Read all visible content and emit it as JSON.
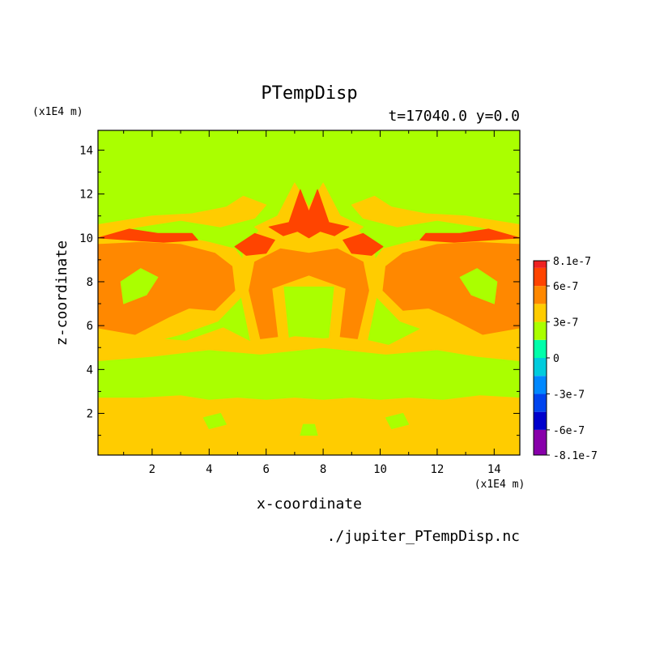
{
  "chart_data": {
    "type": "heatmap",
    "title": "PTempDisp",
    "subtitle": "t=17040.0 y=0.0",
    "xlabel": "x-coordinate",
    "ylabel": "z-coordinate",
    "x_unit": "(x1E4 m)",
    "y_unit": "(x1E4 m)",
    "source_file": "./jupiter_PTempDisp.nc",
    "xlim": [
      0.1,
      14.9
    ],
    "ylim": [
      0.1,
      14.9
    ],
    "x_ticks": [
      {
        "value": 2,
        "label": "2"
      },
      {
        "value": 4,
        "label": "4"
      },
      {
        "value": 6,
        "label": "6"
      },
      {
        "value": 8,
        "label": "8"
      },
      {
        "value": 10,
        "label": "10"
      },
      {
        "value": 12,
        "label": "12"
      },
      {
        "value": 14,
        "label": "14"
      }
    ],
    "y_ticks": [
      {
        "value": 2,
        "label": "2"
      },
      {
        "value": 4,
        "label": "4"
      },
      {
        "value": 6,
        "label": "6"
      },
      {
        "value": 8,
        "label": "8"
      },
      {
        "value": 10,
        "label": "10"
      },
      {
        "value": 12,
        "label": "12"
      },
      {
        "value": 14,
        "label": "14"
      }
    ],
    "colorbar": {
      "levels": [
        -8.1e-07,
        -6e-07,
        -4.5e-07,
        -3e-07,
        -1.5e-07,
        0,
        1.5e-07,
        3e-07,
        4.5e-07,
        6e-07,
        7.5e-07,
        8.1e-07
      ],
      "colors": [
        "#8800aa",
        "#0000cc",
        "#0044ee",
        "#0088ff",
        "#00ccdd",
        "#00ffaa",
        "#aaff00",
        "#ffcc00",
        "#ff8800",
        "#ff4400",
        "#ee2222",
        "#ffaaaa"
      ],
      "tick_labels": [
        {
          "value": 8.1e-07,
          "label": "8.1e-7"
        },
        {
          "value": 6e-07,
          "label": "6e-7"
        },
        {
          "value": 3e-07,
          "label": "3e-7"
        },
        {
          "value": 0,
          "label": "0"
        },
        {
          "value": -3e-07,
          "label": "-3e-7"
        },
        {
          "value": -6e-07,
          "label": "-6e-7"
        },
        {
          "value": -8.1e-07,
          "label": "-8.1e-7"
        }
      ]
    },
    "background_color": "#aaff00",
    "regions": [
      {
        "name": "lower-band",
        "color": "#ffcc00",
        "points": [
          [
            0.1,
            0.1
          ],
          [
            14.9,
            0.1
          ],
          [
            14.9,
            2.7
          ],
          [
            13.5,
            2.8
          ],
          [
            12.2,
            2.6
          ],
          [
            11,
            2.7
          ],
          [
            10,
            2.6
          ],
          [
            9,
            2.7
          ],
          [
            8,
            2.6
          ],
          [
            7,
            2.7
          ],
          [
            6,
            2.6
          ],
          [
            5,
            2.7
          ],
          [
            4,
            2.6
          ],
          [
            3,
            2.8
          ],
          [
            1.6,
            2.7
          ],
          [
            0.1,
            2.7
          ]
        ]
      },
      {
        "name": "mid-band",
        "color": "#ffcc00",
        "points": [
          [
            0.1,
            4.4
          ],
          [
            2,
            4.6
          ],
          [
            4,
            4.9
          ],
          [
            5.8,
            4.7
          ],
          [
            8,
            5.0
          ],
          [
            10.2,
            4.7
          ],
          [
            12,
            4.9
          ],
          [
            13.4,
            4.6
          ],
          [
            14.9,
            4.4
          ],
          [
            14.9,
            5.6
          ],
          [
            12.8,
            5.3
          ],
          [
            11.5,
            5.9
          ],
          [
            10.3,
            5.1
          ],
          [
            9,
            5.5
          ],
          [
            8,
            5.4
          ],
          [
            7,
            5.5
          ],
          [
            5.7,
            5.1
          ],
          [
            4.5,
            5.9
          ],
          [
            3.2,
            5.3
          ],
          [
            0.1,
            5.6
          ]
        ]
      },
      {
        "name": "left-lobe-outer",
        "color": "#ffcc00",
        "points": [
          [
            0.1,
            5.3
          ],
          [
            1.5,
            5.1
          ],
          [
            3,
            5.6
          ],
          [
            4.3,
            6.2
          ],
          [
            5.2,
            7.4
          ],
          [
            5.3,
            8.8
          ],
          [
            4.9,
            9.5
          ],
          [
            4,
            9.8
          ],
          [
            2.8,
            10.1
          ],
          [
            1.4,
            10.3
          ],
          [
            0.1,
            10.2
          ]
        ]
      },
      {
        "name": "left-lobe-core",
        "color": "#ff8800",
        "points": [
          [
            0.1,
            5.9
          ],
          [
            1.4,
            5.6
          ],
          [
            2.6,
            6.4
          ],
          [
            3.3,
            6.8
          ],
          [
            4.2,
            6.7
          ],
          [
            4.9,
            7.6
          ],
          [
            4.8,
            8.7
          ],
          [
            4.2,
            9.3
          ],
          [
            3,
            9.7
          ],
          [
            1.6,
            9.8
          ],
          [
            0.1,
            9.7
          ]
        ]
      },
      {
        "name": "right-lobe-outer",
        "color": "#ffcc00",
        "points": [
          [
            14.9,
            5.3
          ],
          [
            13.5,
            5.1
          ],
          [
            12,
            5.6
          ],
          [
            10.7,
            6.2
          ],
          [
            9.8,
            7.4
          ],
          [
            9.7,
            8.8
          ],
          [
            10.1,
            9.5
          ],
          [
            11,
            9.8
          ],
          [
            12.2,
            10.1
          ],
          [
            13.6,
            10.3
          ],
          [
            14.9,
            10.2
          ]
        ]
      },
      {
        "name": "right-lobe-core",
        "color": "#ff8800",
        "points": [
          [
            14.9,
            5.9
          ],
          [
            13.6,
            5.6
          ],
          [
            12.4,
            6.4
          ],
          [
            11.7,
            6.8
          ],
          [
            10.8,
            6.7
          ],
          [
            10.1,
            7.6
          ],
          [
            10.2,
            8.7
          ],
          [
            10.8,
            9.3
          ],
          [
            12,
            9.7
          ],
          [
            13.4,
            9.8
          ],
          [
            14.9,
            9.7
          ]
        ]
      },
      {
        "name": "central-arch-outer",
        "color": "#ffcc00",
        "points": [
          [
            5.5,
            5.0
          ],
          [
            6.8,
            5.2
          ],
          [
            6.6,
            7.8
          ],
          [
            7.5,
            7.8
          ],
          [
            8.4,
            7.8
          ],
          [
            8.2,
            5.2
          ],
          [
            9.5,
            5.0
          ],
          [
            9.9,
            7.5
          ],
          [
            9.8,
            9.4
          ],
          [
            9.1,
            10.6
          ],
          [
            8,
            11.2
          ],
          [
            7,
            11.2
          ],
          [
            5.9,
            10.6
          ],
          [
            5.2,
            9.4
          ],
          [
            5.1,
            7.5
          ]
        ]
      },
      {
        "name": "central-arch-core",
        "color": "#ff8800",
        "points": [
          [
            5.8,
            5.4
          ],
          [
            6.4,
            5.5
          ],
          [
            6.2,
            7.7
          ],
          [
            7.5,
            8.3
          ],
          [
            8.8,
            7.7
          ],
          [
            8.6,
            5.5
          ],
          [
            9.2,
            5.4
          ],
          [
            9.6,
            7.6
          ],
          [
            9.4,
            8.9
          ],
          [
            8.5,
            9.5
          ],
          [
            7.5,
            9.3
          ],
          [
            6.5,
            9.5
          ],
          [
            5.6,
            8.9
          ],
          [
            5.4,
            7.6
          ]
        ]
      },
      {
        "name": "top-band-left",
        "color": "#ffcc00",
        "points": [
          [
            0.1,
            10.0
          ],
          [
            1.5,
            10.5
          ],
          [
            3,
            10.8
          ],
          [
            4.4,
            10.5
          ],
          [
            5.6,
            10.9
          ],
          [
            6,
            11.5
          ],
          [
            5.2,
            11.9
          ],
          [
            4.6,
            11.4
          ],
          [
            3.4,
            11.1
          ],
          [
            2,
            11.0
          ],
          [
            0.1,
            10.6
          ]
        ]
      },
      {
        "name": "top-band-right",
        "color": "#ffcc00",
        "points": [
          [
            14.9,
            10.0
          ],
          [
            13.5,
            10.5
          ],
          [
            12,
            10.8
          ],
          [
            10.6,
            10.5
          ],
          [
            9.4,
            10.9
          ],
          [
            9,
            11.5
          ],
          [
            9.8,
            11.9
          ],
          [
            10.4,
            11.4
          ],
          [
            11.6,
            11.1
          ],
          [
            13,
            11.0
          ],
          [
            14.9,
            10.6
          ]
        ]
      },
      {
        "name": "crown-outer",
        "color": "#ffcc00",
        "points": [
          [
            6.4,
            11.0
          ],
          [
            7.0,
            12.5
          ],
          [
            7.5,
            11.4
          ],
          [
            8.0,
            12.5
          ],
          [
            8.6,
            11.0
          ],
          [
            9.4,
            10.5
          ],
          [
            8.8,
            9.9
          ],
          [
            8.0,
            10.1
          ],
          [
            7.5,
            9.8
          ],
          [
            7.0,
            10.1
          ],
          [
            6.2,
            9.9
          ],
          [
            5.6,
            10.5
          ]
        ]
      },
      {
        "name": "crown-red",
        "color": "#ff4400",
        "points": [
          [
            6.8,
            10.7
          ],
          [
            7.2,
            12.2
          ],
          [
            7.5,
            11.2
          ],
          [
            7.8,
            12.2
          ],
          [
            8.2,
            10.7
          ],
          [
            8.9,
            10.5
          ],
          [
            8.4,
            10.1
          ],
          [
            7.9,
            10.3
          ],
          [
            7.5,
            10.0
          ],
          [
            7.1,
            10.3
          ],
          [
            6.6,
            10.1
          ],
          [
            6.1,
            10.5
          ]
        ]
      },
      {
        "name": "arch-red-left",
        "color": "#ff4400",
        "points": [
          [
            4.9,
            9.6
          ],
          [
            5.6,
            10.2
          ],
          [
            6.3,
            9.9
          ],
          [
            6.0,
            9.3
          ],
          [
            5.3,
            9.2
          ]
        ]
      },
      {
        "name": "arch-red-right",
        "color": "#ff4400",
        "points": [
          [
            10.1,
            9.6
          ],
          [
            9.4,
            10.2
          ],
          [
            8.7,
            9.9
          ],
          [
            9.0,
            9.3
          ],
          [
            9.7,
            9.2
          ]
        ]
      },
      {
        "name": "top-red-left",
        "color": "#ff4400",
        "points": [
          [
            0.1,
            10.0
          ],
          [
            1.2,
            10.4
          ],
          [
            2.2,
            10.2
          ],
          [
            3.4,
            10.2
          ],
          [
            3.6,
            9.9
          ],
          [
            2.4,
            9.8
          ],
          [
            1.2,
            9.9
          ]
        ]
      },
      {
        "name": "top-red-right",
        "color": "#ff4400",
        "points": [
          [
            14.9,
            10.0
          ],
          [
            13.8,
            10.4
          ],
          [
            12.8,
            10.2
          ],
          [
            11.6,
            10.2
          ],
          [
            11.4,
            9.9
          ],
          [
            12.6,
            9.8
          ],
          [
            13.8,
            9.9
          ]
        ]
      },
      {
        "name": "left-pocket",
        "color": "#aaff00",
        "points": [
          [
            1.0,
            7.0
          ],
          [
            1.8,
            7.4
          ],
          [
            2.2,
            8.2
          ],
          [
            1.6,
            8.6
          ],
          [
            0.9,
            8.0
          ]
        ]
      },
      {
        "name": "right-pocket",
        "color": "#aaff00",
        "points": [
          [
            14.0,
            7.0
          ],
          [
            13.2,
            7.4
          ],
          [
            12.8,
            8.2
          ],
          [
            13.4,
            8.6
          ],
          [
            14.1,
            8.0
          ]
        ]
      },
      {
        "name": "center-pocket",
        "color": "#aaff00",
        "points": [
          [
            7.0,
            6.0
          ],
          [
            8.0,
            6.0
          ],
          [
            8.2,
            7.2
          ],
          [
            7.5,
            7.6
          ],
          [
            6.8,
            7.2
          ]
        ]
      },
      {
        "name": "lower-spot-a",
        "color": "#aaff00",
        "points": [
          [
            4.0,
            1.3
          ],
          [
            4.6,
            1.5
          ],
          [
            4.4,
            2.0
          ],
          [
            3.8,
            1.8
          ]
        ]
      },
      {
        "name": "lower-spot-b",
        "color": "#aaff00",
        "points": [
          [
            10.4,
            1.3
          ],
          [
            11.0,
            1.5
          ],
          [
            10.8,
            2.0
          ],
          [
            10.2,
            1.8
          ]
        ]
      },
      {
        "name": "lower-spot-c",
        "color": "#aaff00",
        "points": [
          [
            7.2,
            1.0
          ],
          [
            7.8,
            1.0
          ],
          [
            7.7,
            1.5
          ],
          [
            7.3,
            1.5
          ]
        ]
      }
    ]
  }
}
